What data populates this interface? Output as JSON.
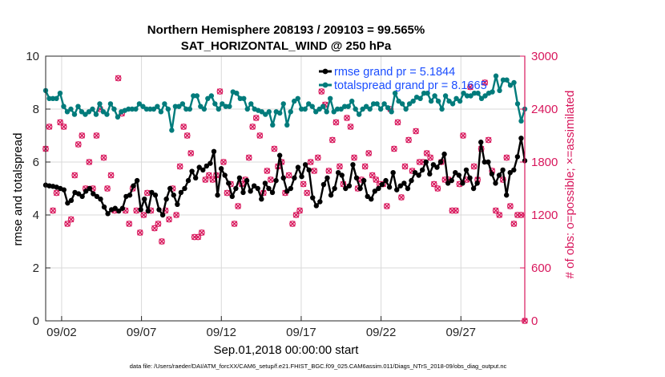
{
  "chart_data": {
    "type": "line",
    "title": "Northern Hemisphere 208193 / 209103 = 99.565%",
    "subtitle": "SAT_HORIZONTAL_WIND @ 250 hPa",
    "xlabel": "Sep.01,2018 00:00:00 start",
    "ylabel_left": "rmse and totalspread",
    "ylabel_right": "# of obs: o=possible; ×=assimilated",
    "footer": "data file: /Users/raeder/DAI/ATM_forcXX/CAM6_setup/f.e21.FHIST_BGC.f09_025.CAM6assim.011/Diags_NTrS_2018-09/obs_diag_output.nc",
    "x_ticks": [
      {
        "day": 1,
        "label": "09/02"
      },
      {
        "day": 6,
        "label": "09/07"
      },
      {
        "day": 11,
        "label": "09/12"
      },
      {
        "day": 16,
        "label": "09/17"
      },
      {
        "day": 21,
        "label": "09/22"
      },
      {
        "day": 26,
        "label": "09/27"
      }
    ],
    "xlim": [
      0,
      30
    ],
    "ylim_left": [
      0,
      10
    ],
    "yticks_left": [
      0,
      2,
      4,
      6,
      8,
      10
    ],
    "ylim_right": [
      0,
      3000
    ],
    "yticks_right": [
      0,
      600,
      1200,
      1800,
      2400,
      3000
    ],
    "grid": true,
    "legend_position": "top-right",
    "colors": {
      "rmse": "#000000",
      "totalspread": "#007b7b",
      "obs": "#d8175c",
      "legend_text": "#1a4dff"
    },
    "series": [
      {
        "name": "rmse grand pr = 5.1844",
        "axis": "left",
        "values": [
          5.13,
          5.1,
          5.08,
          5.05,
          5.0,
          4.95,
          4.45,
          4.55,
          4.85,
          4.8,
          4.7,
          4.9,
          5.0,
          4.8,
          4.7,
          4.6,
          4.3,
          4.05,
          4.2,
          4.25,
          4.15,
          4.25,
          4.7,
          4.75,
          5.1,
          5.3,
          4.2,
          4.6,
          4.15,
          4.85,
          4.75,
          4.2,
          4.0,
          4.6,
          5.0,
          4.75,
          4.4,
          4.85,
          5.0,
          5.3,
          5.65,
          5.4,
          5.8,
          5.7,
          5.85,
          5.95,
          6.4,
          4.75,
          5.75,
          5.5,
          5.2,
          4.7,
          5.0,
          5.4,
          4.85,
          5.3,
          4.9,
          5.1,
          5.0,
          4.6,
          5.2,
          5.0,
          4.85,
          5.3,
          6.25,
          5.4,
          4.9,
          5.0,
          5.4,
          5.8,
          5.45,
          5.9,
          5.7,
          4.65,
          4.35,
          4.5,
          5.15,
          5.4,
          4.75,
          5.0,
          5.6,
          5.5,
          5.0,
          5.1,
          5.9,
          5.4,
          5.0,
          5.3,
          4.7,
          4.6,
          4.9,
          5.0,
          5.15,
          5.3,
          5.05,
          5.6,
          4.95,
          5.1,
          5.2,
          5.0,
          5.3,
          5.6,
          5.5,
          5.7,
          6.0,
          5.55,
          5.9,
          5.8,
          6.0,
          6.3,
          5.2,
          5.3,
          5.6,
          5.5,
          5.2,
          5.7,
          5.4,
          5.0,
          5.2,
          6.75,
          6.0,
          6.0,
          5.55,
          5.2,
          5.5,
          5.7,
          4.75,
          5.6,
          5.7,
          6.2,
          6.9,
          6.05
        ]
      },
      {
        "name": "totalspread grand pr = 8.1665",
        "axis": "left",
        "values": [
          8.7,
          8.4,
          8.4,
          8.4,
          8.6,
          8.1,
          7.9,
          8.0,
          7.8,
          8.1,
          7.9,
          7.8,
          7.9,
          8.0,
          7.8,
          8.2,
          7.9,
          7.8,
          8.2,
          8.0,
          7.7,
          7.9,
          7.95,
          8.0,
          8.0,
          8.0,
          8.2,
          8.1,
          8.0,
          8.0,
          8.0,
          8.1,
          7.9,
          8.2,
          8.0,
          7.2,
          8.1,
          8.1,
          8.2,
          8.0,
          8.0,
          8.5,
          8.5,
          8.1,
          8.0,
          8.4,
          8.5,
          8.2,
          8.0,
          8.2,
          8.1,
          8.1,
          8.65,
          8.6,
          8.4,
          8.4,
          8.0,
          8.2,
          8.0,
          7.95,
          7.9,
          7.8,
          7.9,
          7.4,
          7.9,
          7.85,
          8.2,
          7.4,
          7.9,
          8.3,
          8.4,
          8.0,
          8.0,
          8.2,
          8.1,
          7.9,
          8.0,
          8.1,
          7.9,
          8.4,
          7.9,
          8.0,
          8.0,
          8.1,
          8.1,
          8.3,
          8.0,
          7.8,
          8.0,
          8.1,
          8.0,
          8.2,
          8.2,
          8.0,
          8.2,
          8.05,
          7.9,
          8.6,
          8.3,
          8.2,
          8.0,
          8.2,
          8.3,
          8.45,
          8.4,
          8.6,
          8.6,
          8.3,
          8.5,
          8.3,
          8.0,
          8.5,
          8.3,
          8.2,
          8.4,
          8.3,
          8.6,
          8.5,
          8.5,
          8.6,
          8.6,
          8.4,
          8.5,
          8.6,
          8.65,
          9.25,
          8.7,
          9.1,
          9.1,
          8.9,
          9.0,
          8.2,
          7.55,
          8.0
        ]
      },
      {
        "name": "possible",
        "axis": "right",
        "values": [
          1950,
          2200,
          1250,
          1450,
          2250,
          2200,
          1100,
          1150,
          1650,
          2000,
          2100,
          1500,
          1800,
          1500,
          2100,
          2400,
          1850,
          1500,
          1650,
          1250,
          2750,
          2350,
          1250,
          1100,
          1500,
          1250,
          1000,
          1200,
          1450,
          1250,
          1050,
          1100,
          900,
          1250,
          1150,
          1500,
          1200,
          1750,
          2200,
          2100,
          1900,
          950,
          950,
          1000,
          1600,
          1650,
          1600,
          1650,
          2600,
          1800,
          1450,
          1550,
          1100,
          1300,
          1550,
          1600,
          1850,
          2200,
          2300,
          2100,
          1450,
          1700,
          1600,
          1950,
          1750,
          1800,
          1450,
          1650,
          1100,
          1200,
          1250,
          1550,
          1450,
          1800,
          1700,
          1850,
          2600,
          2450,
          1700,
          2050,
          2250,
          1750,
          1550,
          2300,
          2200,
          1850,
          1500,
          1600,
          1750,
          1900,
          1650,
          1600,
          1550,
          1550,
          1300,
          2400,
          1950,
          2250,
          1400,
          1750,
          2050,
          1700,
          2150,
          1800,
          1800,
          1900,
          1850,
          1550,
          1500,
          1800,
          1600,
          1600,
          1250,
          1250,
          1550,
          2100,
          1600,
          2650,
          1750,
          1600,
          1950,
          2700,
          2050,
          1700,
          1250,
          1200,
          1600,
          1850,
          1300,
          1100,
          1200,
          1200,
          0
        ]
      },
      {
        "name": "assimilated",
        "axis": "right",
        "values": [
          1950,
          2200,
          1250,
          1450,
          2250,
          2200,
          1100,
          1150,
          1650,
          2000,
          2100,
          1500,
          1800,
          1500,
          2100,
          2400,
          1850,
          1500,
          1650,
          1250,
          2750,
          2350,
          1250,
          1100,
          1500,
          1250,
          1000,
          1200,
          1450,
          1250,
          1050,
          1100,
          900,
          1250,
          1150,
          1500,
          1200,
          1750,
          2200,
          2100,
          1900,
          950,
          950,
          1000,
          1600,
          1650,
          1600,
          1650,
          2600,
          1800,
          1450,
          1550,
          1100,
          1300,
          1550,
          1600,
          1850,
          2200,
          2300,
          2100,
          1450,
          1700,
          1600,
          1950,
          1750,
          1800,
          1450,
          1650,
          1100,
          1200,
          1250,
          1550,
          1450,
          1800,
          1700,
          1850,
          2600,
          2450,
          1700,
          2050,
          2250,
          1750,
          1550,
          2300,
          2200,
          1850,
          1500,
          1600,
          1750,
          1900,
          1650,
          1600,
          1550,
          1550,
          1300,
          2400,
          1950,
          2250,
          1400,
          1750,
          2050,
          1700,
          2150,
          1800,
          1800,
          1900,
          1850,
          1550,
          1500,
          1800,
          1600,
          1600,
          1250,
          1250,
          1550,
          2100,
          1600,
          2650,
          1750,
          1600,
          1950,
          2700,
          2050,
          1700,
          1250,
          1200,
          1600,
          1850,
          1300,
          1100,
          1200,
          1200,
          0
        ]
      }
    ]
  }
}
